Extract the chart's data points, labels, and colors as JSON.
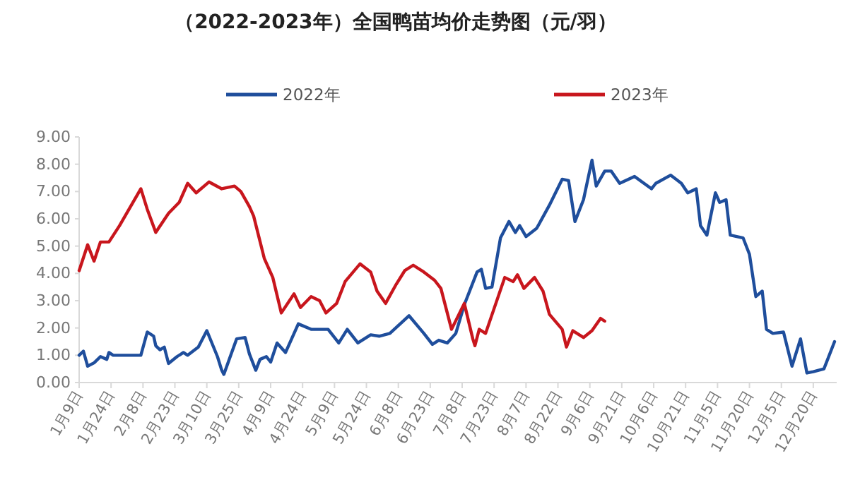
{
  "chart_data": {
    "type": "line",
    "title": "（2022-2023年）全国鸭苗均价走势图（元/羽）",
    "x": [
      "--01-09",
      "--01-11",
      "--01-13",
      "--01-16",
      "--01-19",
      "--01-22",
      "--01-23",
      "--01-25",
      "--02-07",
      "--02-10",
      "--02-13",
      "--02-14",
      "--02-16",
      "--02-18",
      "--02-20",
      "--02-24",
      "--02-27",
      "--03-01",
      "--03-06",
      "--03-10",
      "--03-15",
      "--03-17",
      "--03-18",
      "--03-21",
      "--03-24",
      "--03-28",
      "--03-30",
      "--04-02",
      "--04-04",
      "--04-07",
      "--04-09",
      "--04-12",
      "--04-16",
      "--04-22",
      "--04-28",
      "--05-02",
      "--05-06",
      "--05-11",
      "--05-15",
      "--05-20",
      "--05-26",
      "--05-30",
      "--06-04",
      "--06-13",
      "--06-20",
      "--06-24",
      "--06-27",
      "--07-01",
      "--07-05",
      "--07-09",
      "--07-15",
      "--07-17",
      "--07-19",
      "--07-22",
      "--07-26",
      "--07-30",
      "--08-02",
      "--08-04",
      "--08-07",
      "--08-12",
      "--08-18",
      "--08-24",
      "--08-27",
      "--08-30",
      "--09-03",
      "--09-07",
      "--09-09",
      "--09-13",
      "--09-16",
      "--09-20",
      "--09-27",
      "--10-05",
      "--10-07",
      "--10-14",
      "--10-19",
      "--10-22",
      "--10-26",
      "--10-28",
      "--10-31",
      "--11-04",
      "--11-06",
      "--11-09",
      "--11-11",
      "--11-17",
      "--11-20",
      "--11-23",
      "--11-26",
      "--11-28",
      "--12-01",
      "--12-06",
      "--12-10",
      "--12-14",
      "--12-17",
      "--12-20",
      "--12-25",
      "--12-30"
    ],
    "series": [
      {
        "name": "2022年",
        "color": "#1f4e9c",
        "values": [
          1.0,
          1.15,
          0.6,
          0.72,
          0.95,
          0.85,
          1.1,
          1.0,
          1.0,
          1.85,
          1.7,
          1.35,
          1.2,
          1.3,
          0.7,
          0.95,
          1.1,
          1.0,
          1.3,
          1.9,
          0.95,
          0.45,
          0.3,
          0.95,
          1.6,
          1.65,
          1.05,
          0.45,
          0.85,
          0.95,
          0.75,
          1.45,
          1.1,
          2.15,
          1.95,
          1.95,
          1.95,
          1.45,
          1.95,
          1.45,
          1.75,
          1.7,
          1.8,
          2.45,
          1.8,
          1.4,
          1.55,
          1.45,
          1.8,
          2.85,
          4.05,
          4.15,
          3.45,
          3.5,
          5.3,
          5.9,
          5.5,
          5.75,
          5.35,
          5.65,
          6.5,
          7.45,
          7.4,
          5.9,
          6.7,
          8.15,
          7.2,
          7.75,
          7.75,
          7.3,
          7.55,
          7.1,
          7.3,
          7.6,
          7.3,
          6.95,
          7.1,
          5.75,
          5.4,
          6.95,
          6.6,
          6.7,
          5.4,
          5.3,
          4.7,
          3.15,
          3.35,
          1.95,
          1.8,
          1.85,
          0.6,
          1.6,
          0.35,
          0.4,
          0.5,
          1.5
        ]
      },
      {
        "name": "2023年",
        "color": "#c8161d",
        "x": [
          "--01-09",
          "--01-13",
          "--01-16",
          "--01-19",
          "--01-23",
          "--01-28",
          "--02-07",
          "--02-10",
          "--02-14",
          "--02-17",
          "--02-20",
          "--02-25",
          "--03-01",
          "--03-05",
          "--03-11",
          "--03-17",
          "--03-23",
          "--03-26",
          "--03-30",
          "--04-01",
          "--04-06",
          "--04-10",
          "--04-14",
          "--04-20",
          "--04-23",
          "--04-28",
          "--05-02",
          "--05-05",
          "--05-10",
          "--05-14",
          "--05-21",
          "--05-26",
          "--05-29",
          "--06-02",
          "--06-07",
          "--06-11",
          "--06-15",
          "--06-20",
          "--06-25",
          "--06-28",
          "--07-03",
          "--07-09",
          "--07-13",
          "--07-14",
          "--07-16",
          "--07-19",
          "--07-28",
          "--08-01",
          "--08-03",
          "--08-06",
          "--08-11",
          "--08-15",
          "--08-18",
          "--08-24",
          "--08-26",
          "--08-29",
          "--09-03",
          "--09-07",
          "--09-11",
          "--09-13"
        ],
        "values": [
          4.1,
          5.05,
          4.45,
          5.15,
          5.15,
          5.75,
          7.1,
          6.35,
          5.5,
          5.85,
          6.2,
          6.6,
          7.3,
          6.95,
          7.35,
          7.1,
          7.2,
          7.0,
          6.45,
          6.1,
          4.55,
          3.85,
          2.55,
          3.25,
          2.75,
          3.15,
          3.0,
          2.55,
          2.9,
          3.7,
          4.35,
          4.05,
          3.35,
          2.9,
          3.6,
          4.1,
          4.3,
          4.05,
          3.75,
          3.45,
          1.95,
          2.9,
          1.6,
          1.35,
          1.95,
          1.8,
          3.85,
          3.7,
          3.95,
          3.45,
          3.85,
          3.35,
          2.5,
          1.95,
          1.3,
          1.9,
          1.65,
          1.9,
          2.35,
          2.25
        ]
      }
    ],
    "xlim": [
      "--01-09",
      "--12-31"
    ],
    "xticks": [
      {
        "value": "--01-09",
        "label": "1月9日"
      },
      {
        "value": "--01-24",
        "label": "1月24日"
      },
      {
        "value": "--02-08",
        "label": "2月8日"
      },
      {
        "value": "--02-23",
        "label": "2月23日"
      },
      {
        "value": "--03-10",
        "label": "3月10日"
      },
      {
        "value": "--03-25",
        "label": "3月25日"
      },
      {
        "value": "--04-09",
        "label": "4月9日"
      },
      {
        "value": "--04-24",
        "label": "4月24日"
      },
      {
        "value": "--05-09",
        "label": "5月9日"
      },
      {
        "value": "--05-24",
        "label": "5月24日"
      },
      {
        "value": "--06-08",
        "label": "6月8日"
      },
      {
        "value": "--06-23",
        "label": "6月23日"
      },
      {
        "value": "--07-08",
        "label": "7月8日"
      },
      {
        "value": "--07-23",
        "label": "7月23日"
      },
      {
        "value": "--08-07",
        "label": "8月7日"
      },
      {
        "value": "--08-22",
        "label": "8月22日"
      },
      {
        "value": "--09-06",
        "label": "9月6日"
      },
      {
        "value": "--09-21",
        "label": "9月21日"
      },
      {
        "value": "--10-06",
        "label": "10月6日"
      },
      {
        "value": "--10-21",
        "label": "10月21日"
      },
      {
        "value": "--11-05",
        "label": "11月5日"
      },
      {
        "value": "--11-20",
        "label": "11月20日"
      },
      {
        "value": "--12-05",
        "label": "12月5日"
      },
      {
        "value": "--12-20",
        "label": "12月20日"
      }
    ],
    "ylim": [
      0,
      9
    ],
    "yticks": [
      {
        "value": 0,
        "label": "0.00"
      },
      {
        "value": 1,
        "label": "1.00"
      },
      {
        "value": 2,
        "label": "2.00"
      },
      {
        "value": 3,
        "label": "3.00"
      },
      {
        "value": 4,
        "label": "4.00"
      },
      {
        "value": 5,
        "label": "5.00"
      },
      {
        "value": 6,
        "label": "6.00"
      },
      {
        "value": 7,
        "label": "7.00"
      },
      {
        "value": 8,
        "label": "8.00"
      },
      {
        "value": 9,
        "label": "9.00"
      }
    ],
    "grid": false,
    "legend": "top",
    "marker": "none",
    "line_style": "solid"
  }
}
